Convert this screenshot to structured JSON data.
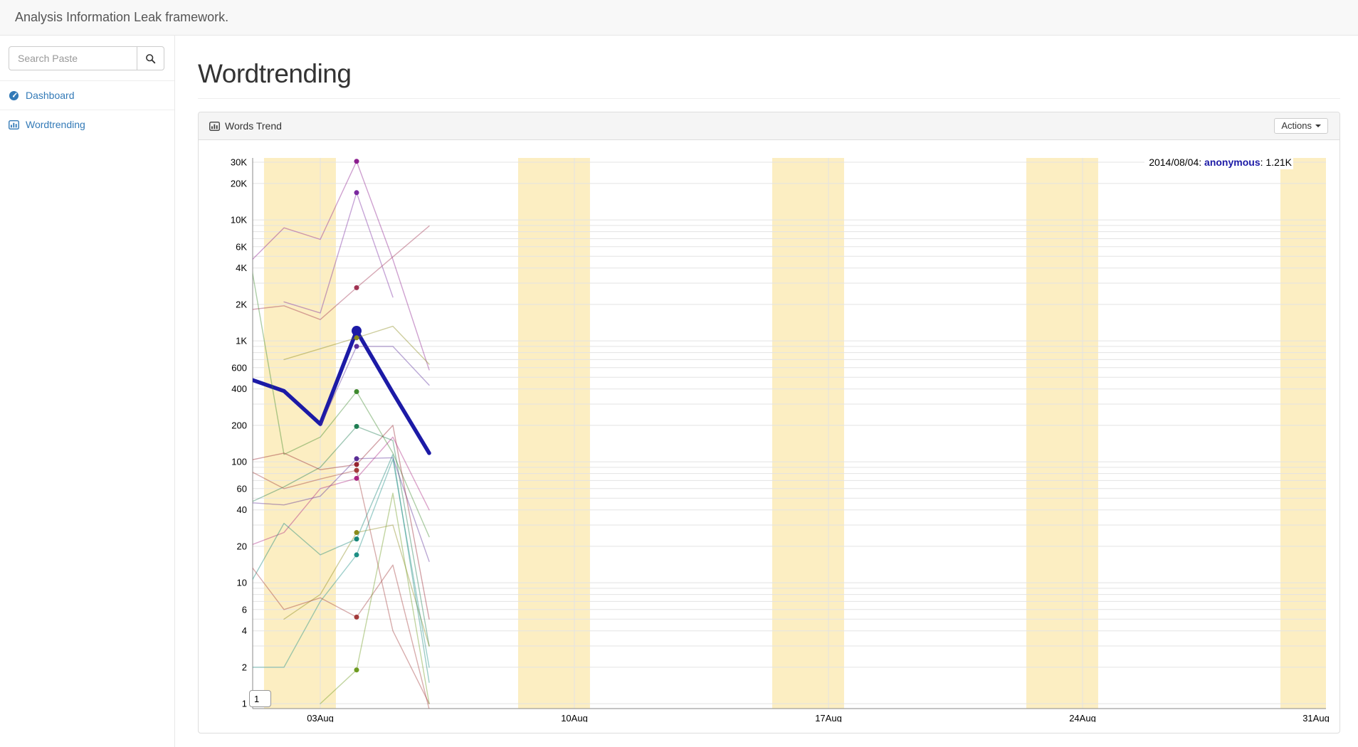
{
  "navbar": {
    "brand": "Analysis Information Leak framework."
  },
  "sidebar": {
    "search": {
      "placeholder": "Search Paste"
    },
    "items": [
      {
        "icon": "dashboard-icon",
        "label": "Dashboard"
      },
      {
        "icon": "bar-chart-icon",
        "label": "Wordtrending"
      }
    ]
  },
  "main": {
    "page_title": "Wordtrending"
  },
  "panel": {
    "title": "Words Trend",
    "actions_label": "Actions"
  },
  "chart_data": {
    "type": "line",
    "style": "dygraphs-log-time-series",
    "title": "Words Trend",
    "xlabel": "",
    "ylabel": "",
    "x_axis": {
      "type": "date",
      "month": "2014-08",
      "tick_labels": [
        "03Aug",
        "10Aug",
        "17Aug",
        "24Aug",
        "31Aug"
      ],
      "tick_days": [
        3,
        10,
        17,
        24,
        31
      ],
      "range_days": [
        1.15,
        30.7
      ],
      "grid": true
    },
    "y_axis": {
      "scale": "log",
      "tick_labels": [
        "30K",
        "20K",
        "10K",
        "6K",
        "4K",
        "2K",
        "1K",
        "600",
        "400",
        "200",
        "100",
        "60",
        "40",
        "20",
        "10",
        "6",
        "4",
        "2",
        "1"
      ],
      "tick_values": [
        30000,
        20000,
        10000,
        6000,
        4000,
        2000,
        1000,
        600,
        400,
        200,
        100,
        60,
        40,
        20,
        10,
        6,
        4,
        2,
        1
      ],
      "range": [
        0.9,
        33000
      ],
      "grid": true
    },
    "colors": {
      "weekend_band": "#fceec2",
      "gridline": "#e3e3e3",
      "axis": "#8a8a8a",
      "highlight_series": "#1c1aa6"
    },
    "weekend_bands_days": [
      [
        1.45,
        3.43
      ],
      [
        8.45,
        10.43
      ],
      [
        15.45,
        17.43
      ],
      [
        22.45,
        24.43
      ],
      [
        29.45,
        31.43
      ]
    ],
    "legend": {
      "prefix": "2014/08/04: ",
      "series": "anonymous",
      "suffix": ": 1.21K"
    },
    "highlight": {
      "date": "2014/08/04",
      "day": 4,
      "series": "anonymous",
      "value": 1210,
      "value_label": "1.21K"
    },
    "roll_period": "1",
    "series": [
      {
        "name": "anonymous",
        "highlighted": true,
        "color": "#1c1aa6",
        "points": [
          [
            1,
            490
          ],
          [
            2,
            385
          ],
          [
            3,
            205
          ],
          [
            4,
            1210
          ],
          [
            5,
            372
          ],
          [
            6,
            118
          ]
        ]
      },
      {
        "color": "#8c1e8f",
        "points": [
          [
            1,
            4300
          ],
          [
            2,
            8600
          ],
          [
            3,
            6900
          ],
          [
            4,
            30500
          ],
          [
            5,
            4700
          ],
          [
            6,
            575
          ]
        ]
      },
      {
        "color": "#7a28a0",
        "points": [
          [
            2,
            2100
          ],
          [
            3,
            1700
          ],
          [
            4,
            16800
          ],
          [
            5,
            2300
          ]
        ]
      },
      {
        "color": "#a03352",
        "points": [
          [
            1,
            1800
          ],
          [
            2,
            1950
          ],
          [
            3,
            1500
          ],
          [
            4,
            2750
          ],
          [
            6,
            8900
          ]
        ]
      },
      {
        "color": "#8a8a1a",
        "points": [
          [
            2,
            700
          ],
          [
            3,
            860
          ],
          [
            4,
            1060
          ],
          [
            5,
            1320
          ],
          [
            6,
            640
          ]
        ]
      },
      {
        "color": "#5b2f9e",
        "points": [
          [
            3,
            198
          ],
          [
            4,
            900
          ],
          [
            5,
            900
          ],
          [
            6,
            430
          ]
        ]
      },
      {
        "color": "#3f8a2e",
        "points": [
          [
            1,
            6200
          ],
          [
            2,
            115
          ],
          [
            3,
            160
          ],
          [
            4,
            380
          ],
          [
            5,
            118
          ],
          [
            6,
            24
          ]
        ]
      },
      {
        "color": "#1e7d52",
        "points": [
          [
            1,
            45
          ],
          [
            2,
            62
          ],
          [
            3,
            90
          ],
          [
            4,
            196
          ],
          [
            5,
            150
          ],
          [
            6,
            3
          ]
        ]
      },
      {
        "color": "#5a2d95",
        "points": [
          [
            1,
            46
          ],
          [
            2,
            44
          ],
          [
            3,
            52
          ],
          [
            4,
            106
          ],
          [
            5,
            108
          ],
          [
            6,
            15
          ]
        ]
      },
      {
        "color": "#96242f",
        "points": [
          [
            1,
            102
          ],
          [
            2,
            118
          ],
          [
            3,
            86
          ],
          [
            4,
            95
          ],
          [
            5,
            200
          ],
          [
            6,
            5
          ]
        ]
      },
      {
        "color": "#a33b3b",
        "points": [
          [
            1,
            86
          ],
          [
            2,
            60
          ],
          [
            3,
            72
          ],
          [
            4,
            85
          ],
          [
            5,
            4
          ],
          [
            6,
            1
          ]
        ]
      },
      {
        "color": "#ab2480",
        "points": [
          [
            1,
            20
          ],
          [
            2,
            26
          ],
          [
            3,
            60
          ],
          [
            4,
            73
          ],
          [
            5,
            160
          ],
          [
            6,
            40
          ]
        ]
      },
      {
        "color": "#8a8a1a",
        "points": [
          [
            2,
            5
          ],
          [
            3,
            8
          ],
          [
            4,
            26
          ],
          [
            5,
            30
          ],
          [
            6,
            3
          ]
        ]
      },
      {
        "color": "#168578",
        "points": [
          [
            1,
            9
          ],
          [
            2,
            31
          ],
          [
            3,
            17
          ],
          [
            4,
            23
          ],
          [
            5,
            115
          ],
          [
            6,
            1.5
          ]
        ]
      },
      {
        "color": "#1d8f85",
        "points": [
          [
            1,
            2
          ],
          [
            2,
            2
          ],
          [
            3,
            7
          ],
          [
            4,
            17
          ],
          [
            5,
            105
          ],
          [
            6,
            2
          ]
        ]
      },
      {
        "color": "#a33b3b",
        "points": [
          [
            1,
            15
          ],
          [
            2,
            6
          ],
          [
            3,
            7.5
          ],
          [
            4,
            5.2
          ],
          [
            5,
            14
          ],
          [
            6,
            0.9
          ]
        ]
      },
      {
        "color": "#6d9a20",
        "points": [
          [
            3,
            1
          ],
          [
            4,
            1.9
          ],
          [
            5,
            55
          ],
          [
            6,
            1
          ]
        ]
      }
    ]
  }
}
